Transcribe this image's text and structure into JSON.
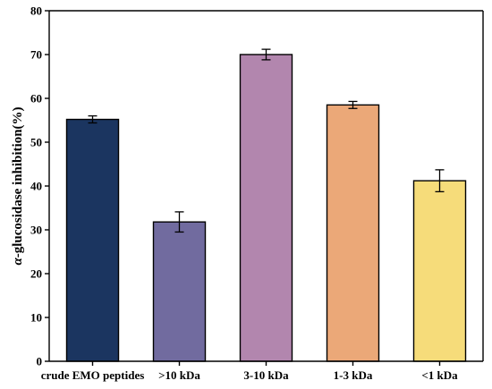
{
  "chart_data": {
    "type": "bar",
    "categories": [
      "crude EMO peptides",
      ">10 kDa",
      "3-10 kDa",
      "1-3 kDa",
      "<1 kDa"
    ],
    "values": [
      55.2,
      31.8,
      70.0,
      58.5,
      41.2
    ],
    "errors": [
      0.8,
      2.3,
      1.2,
      0.8,
      2.5
    ],
    "colors": [
      "#1b3560",
      "#716b9f",
      "#b286ae",
      "#eba878",
      "#f6dc7a"
    ],
    "ylabel_prefix": "α",
    "ylabel_rest": "-glucosidase inhibition(%)",
    "ylim": [
      0,
      80
    ],
    "yticks": [
      0,
      10,
      20,
      30,
      40,
      50,
      60,
      70,
      80
    ],
    "grid": false
  }
}
